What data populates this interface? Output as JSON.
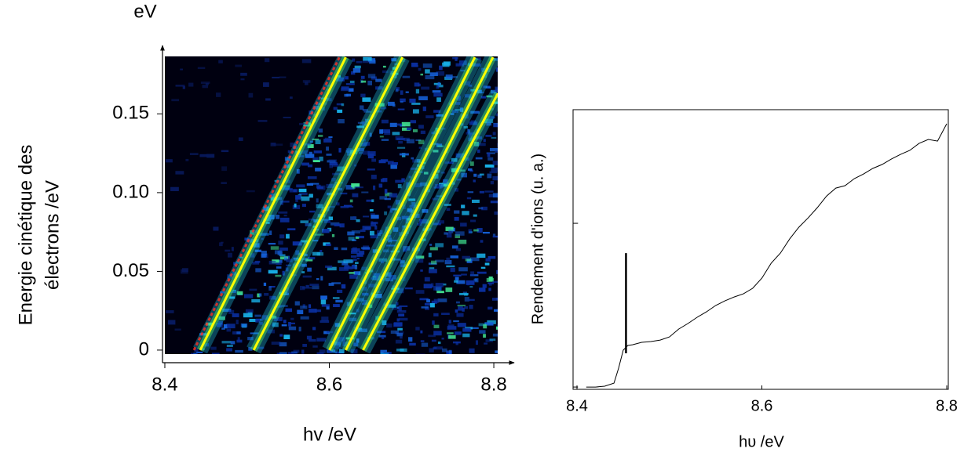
{
  "chart_data": [
    {
      "type": "line",
      "y_unit": "eV",
      "xlabel": "hv /eV",
      "ylabel": [
        "Energie cinétique des",
        "électrons /eV"
      ],
      "xlim": [
        8.39,
        8.82
      ],
      "ylim": [
        -0.008,
        0.19
      ],
      "xticks": [
        8.4,
        8.6,
        8.8
      ],
      "yticks": [
        0,
        0.05,
        {
          "value": 0.1,
          "label": "0.10"
        },
        0.15
      ],
      "series": [
        {
          "color": "#ffff00",
          "x": [
            8.443,
            8.62
          ],
          "values": [
            0,
            0.186
          ]
        },
        {
          "color": "#ffff00",
          "x": [
            8.508,
            8.689
          ],
          "values": [
            0,
            0.186
          ]
        },
        {
          "color": "#ffff00",
          "x": [
            8.6,
            8.777
          ],
          "values": [
            0,
            0.186
          ]
        },
        {
          "color": "#ffff00",
          "x": [
            8.62,
            8.799
          ],
          "values": [
            0,
            0.186
          ]
        },
        {
          "color": "#ffff00",
          "x": [
            8.641,
            8.805
          ],
          "values": [
            0,
            0.163
          ]
        }
      ]
    },
    {
      "type": "line",
      "xlabel": "hυ /eV",
      "ylabel": "Rendement d'ions (u. a.)",
      "xlim": [
        8.396,
        8.802
      ],
      "ylim": [
        -0.014,
        1.694
      ],
      "xticks": [
        8.4,
        8.6,
        8.8
      ],
      "yticks": [
        0,
        1
      ],
      "vline": {
        "x": 8.453,
        "ymin": 0.206,
        "ymax": 0.818
      },
      "series": [
        {
          "color": "#000000",
          "x": [
            8.41,
            8.42,
            8.43,
            8.44,
            8.445,
            8.45,
            8.455,
            8.46,
            8.47,
            8.48,
            8.49,
            8.5,
            8.51,
            8.52,
            8.53,
            8.54,
            8.55,
            8.56,
            8.57,
            8.58,
            8.59,
            8.6,
            8.61,
            8.62,
            8.63,
            8.64,
            8.65,
            8.66,
            8.67,
            8.68,
            8.69,
            8.7,
            8.71,
            8.72,
            8.73,
            8.74,
            8.75,
            8.76,
            8.77,
            8.78,
            8.79,
            8.8
          ],
          "values": [
            0,
            0,
            0.005,
            0.024,
            0.115,
            0.225,
            0.254,
            0.258,
            0.273,
            0.278,
            0.287,
            0.306,
            0.354,
            0.388,
            0.426,
            0.459,
            0.498,
            0.526,
            0.55,
            0.569,
            0.603,
            0.665,
            0.756,
            0.818,
            0.904,
            0.976,
            1.033,
            1.096,
            1.167,
            1.215,
            1.23,
            1.273,
            1.301,
            1.335,
            1.359,
            1.392,
            1.421,
            1.445,
            1.488,
            1.512,
            1.502,
            1.608
          ]
        }
      ]
    }
  ]
}
